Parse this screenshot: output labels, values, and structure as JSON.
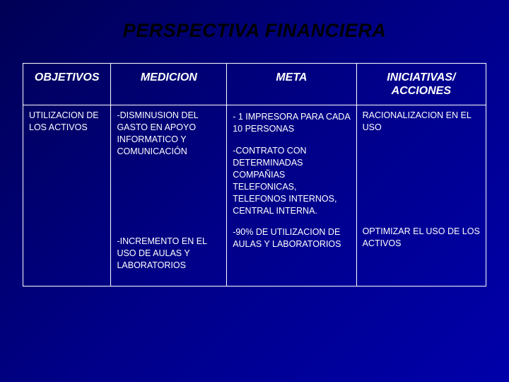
{
  "title": "PERSPECTIVA FINANCIERA",
  "colors": {
    "background_gradient_start": "#000055",
    "background_gradient_mid": "#000088",
    "background_gradient_end": "#0000aa",
    "title_color": "#000000",
    "text_color": "#ffffff",
    "border_color": "#ffffff"
  },
  "typography": {
    "title_fontsize": 27,
    "title_weight": "bold",
    "title_style": "italic",
    "header_fontsize": 16,
    "header_weight": "bold",
    "header_style": "italic",
    "body_fontsize": 12.5,
    "font_family": "Arial"
  },
  "table": {
    "type": "table",
    "columns": [
      {
        "key": "objetivos",
        "label": "OBJETIVOS",
        "width_pct": 19
      },
      {
        "key": "medicion",
        "label": "MEDICION",
        "width_pct": 25
      },
      {
        "key": "meta",
        "label": "META",
        "width_pct": 28
      },
      {
        "key": "iniciativas",
        "label": "INICIATIVAS/ ACCIONES",
        "width_pct": 28
      }
    ],
    "rows": [
      {
        "objetivos": "UTILIZACION DE LOS ACTIVOS",
        "medicion_1": "-DISMINUSION DEL GASTO EN APOYO INFORMATICO Y COMUNICACIÓN",
        "medicion_2": "-INCREMENTO EN EL USO DE AULAS Y LABORATORIOS",
        "meta_1": "- 1 IMPRESORA PARA CADA 10 PERSONAS",
        "meta_2": "-CONTRATO CON DETERMINADAS COMPAÑIAS TELEFONICAS, TELEFONOS INTERNOS, CENTRAL INTERNA.",
        "meta_3": "-90% DE UTILIZACION DE AULAS Y LABORATORIOS",
        "iniciativas_1": "RACIONALIZACION EN EL USO",
        "iniciativas_2": "OPTIMIZAR EL USO DE LOS ACTIVOS"
      }
    ]
  }
}
